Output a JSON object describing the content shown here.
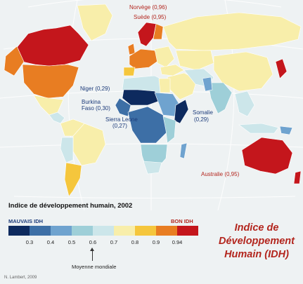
{
  "map": {
    "labels": {
      "norvege": "Norvège (0,96)",
      "suede": "Suède (0,95)",
      "niger": "Niger (0,29)",
      "burkina_1": "Burkina",
      "burkina_2": "Faso (0,30)",
      "sierra_1": "Sierra Leone",
      "sierra_2": "(0,27)",
      "somalie_1": "Somalie",
      "somalie_2": "(0,29)",
      "australie": "Australie (0,95)"
    },
    "colors": {
      "ocean": "#eef2f3",
      "d1": "#0d2a5e",
      "d2": "#3d6fa6",
      "d3": "#6fa3cf",
      "d4": "#9ecfd8",
      "d5": "#cce6ea",
      "d6": "#f8eeaa",
      "d7": "#f5c63c",
      "d8": "#e87d22",
      "d9": "#c4161c"
    }
  },
  "legend": {
    "title": "Indice de développement humain, 2002",
    "low_label": "MAUVAIS IDH",
    "high_label": "BON IDH",
    "ticks": [
      "0.3",
      "0.4",
      "0.5",
      "0.6",
      "0.7",
      "0.8",
      "0.9",
      "0.94"
    ],
    "average_label": "Moyenne mondiale",
    "swatches": [
      "#0d2a5e",
      "#3d6fa6",
      "#6fa3cf",
      "#9ecfd8",
      "#cce6ea",
      "#f8eeaa",
      "#f5c63c",
      "#e87d22",
      "#c4161c"
    ]
  },
  "title": {
    "line1": "Indice de",
    "line2": "Développement",
    "line3": "Humain (IDH)"
  },
  "credit": "N. Lambert, 2009"
}
